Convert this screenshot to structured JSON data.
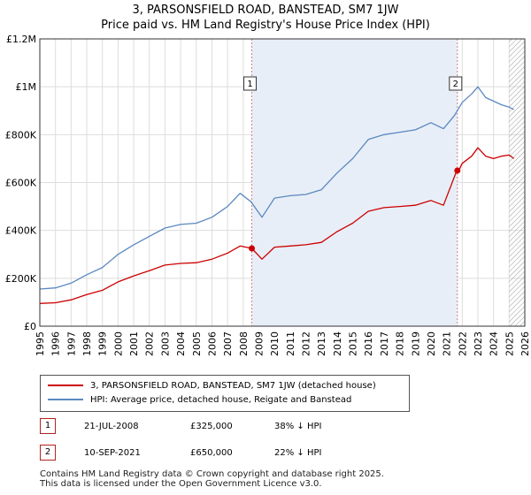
{
  "title_line1": "3, PARSONSFIELD ROAD, BANSTEAD, SM7 1JW",
  "title_line2": "Price paid vs. HM Land Registry's House Price Index (HPI)",
  "colors": {
    "property": "#cc0000",
    "hpi": "#5b88c0",
    "marker": "#cc0000",
    "vline": "#d08080",
    "shade": "#e8eef7",
    "grid": "#dddddd"
  },
  "chart_data": {
    "type": "line",
    "xlim": [
      1995,
      2026
    ],
    "ylim": [
      0,
      1200000
    ],
    "x_ticks": [
      "1995",
      "1996",
      "1997",
      "1998",
      "1999",
      "2000",
      "2001",
      "2002",
      "2003",
      "2004",
      "2005",
      "2006",
      "2007",
      "2008",
      "2009",
      "2010",
      "2011",
      "2012",
      "2013",
      "2014",
      "2015",
      "2016",
      "2017",
      "2018",
      "2019",
      "2020",
      "2021",
      "2022",
      "2023",
      "2024",
      "2025",
      "2026"
    ],
    "y_ticks": [
      {
        "value": 0,
        "label": "£0"
      },
      {
        "value": 200000,
        "label": "£200K"
      },
      {
        "value": 400000,
        "label": "£400K"
      },
      {
        "value": 600000,
        "label": "£600K"
      },
      {
        "value": 800000,
        "label": "£800K"
      },
      {
        "value": 1000000,
        "label": "£1M"
      },
      {
        "value": 1200000,
        "label": "£1.2M"
      }
    ],
    "series": [
      {
        "name": "HPI: Average price, detached house, Reigate and Banstead",
        "x": [
          1995.0,
          1996.0,
          1997.0,
          1998.0,
          1999.0,
          2000.0,
          2001.0,
          2002.0,
          2003.0,
          2004.0,
          2005.0,
          2006.0,
          2007.0,
          2007.8,
          2008.5,
          2009.2,
          2010.0,
          2011.0,
          2012.0,
          2013.0,
          2014.0,
          2015.0,
          2016.0,
          2017.0,
          2018.0,
          2019.0,
          2020.0,
          2020.8,
          2021.5,
          2022.0,
          2022.6,
          2023.0,
          2023.5,
          2024.0,
          2024.5,
          2025.0,
          2025.3
        ],
        "y": [
          155000,
          160000,
          180000,
          215000,
          245000,
          300000,
          340000,
          375000,
          410000,
          425000,
          430000,
          455000,
          500000,
          555000,
          520000,
          455000,
          535000,
          545000,
          550000,
          570000,
          640000,
          700000,
          780000,
          800000,
          810000,
          820000,
          850000,
          825000,
          880000,
          935000,
          970000,
          1000000,
          955000,
          940000,
          925000,
          915000,
          905000
        ]
      },
      {
        "name": "3, PARSONSFIELD ROAD, BANSTEAD, SM7 1JW (detached house)",
        "x": [
          1995.0,
          1996.0,
          1997.0,
          1998.0,
          1999.0,
          2000.0,
          2001.0,
          2002.0,
          2003.0,
          2004.0,
          2005.0,
          2006.0,
          2007.0,
          2007.8,
          2008.55,
          2009.2,
          2010.0,
          2011.0,
          2012.0,
          2013.0,
          2014.0,
          2015.0,
          2016.0,
          2017.0,
          2018.0,
          2019.0,
          2020.0,
          2020.8,
          2021.65,
          2021.7,
          2022.0,
          2022.6,
          2023.0,
          2023.5,
          2024.0,
          2024.5,
          2025.0,
          2025.3
        ],
        "y": [
          95000,
          98000,
          110000,
          132000,
          150000,
          185000,
          210000,
          232000,
          255000,
          262000,
          265000,
          280000,
          305000,
          335000,
          325000,
          280000,
          330000,
          335000,
          340000,
          350000,
          395000,
          430000,
          480000,
          495000,
          500000,
          505000,
          525000,
          505000,
          650000,
          640000,
          680000,
          710000,
          745000,
          710000,
          700000,
          710000,
          715000,
          700000
        ]
      }
    ],
    "sales": [
      {
        "label": "1",
        "x": 2008.55,
        "price": 325000,
        "date": "21-JUL-2008",
        "price_text": "£325,000",
        "hpi_text": "38% ↓ HPI"
      },
      {
        "label": "2",
        "x": 2021.69,
        "price": 650000,
        "date": "10-SEP-2021",
        "price_text": "£650,000",
        "hpi_text": "22% ↓ HPI"
      }
    ],
    "hatched_from": 2025.0
  },
  "legend": {
    "property": "3, PARSONSFIELD ROAD, BANSTEAD, SM7 1JW (detached house)",
    "hpi": "HPI: Average price, detached house, Reigate and Banstead"
  },
  "footer": {
    "line1": "Contains HM Land Registry data © Crown copyright and database right 2025.",
    "line2": "This data is licensed under the Open Government Licence v3.0."
  }
}
